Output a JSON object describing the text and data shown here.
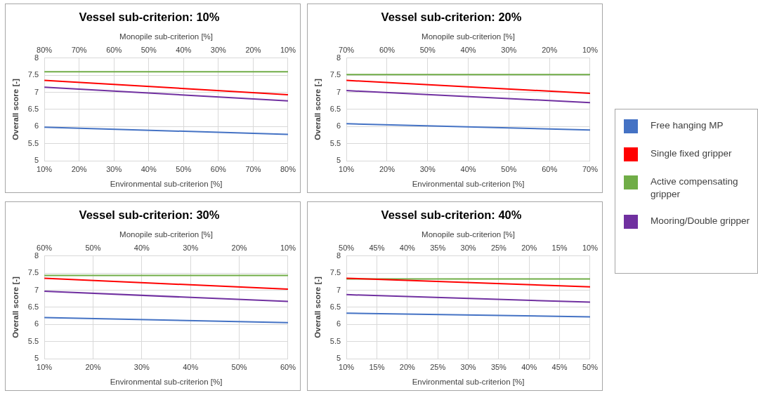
{
  "chart_data": [
    {
      "type": "line",
      "title": "Vessel sub-criterion: 10%",
      "xlabel": "Environmental sub-criterion [%]",
      "x2label": "Monopile sub-criterion [%]",
      "ylabel": "Overall score [-]",
      "x": [
        10,
        80
      ],
      "xlim": [
        10,
        80
      ],
      "xticks": [
        {
          "value": 10,
          "label": "10%"
        },
        {
          "value": 20,
          "label": "20%"
        },
        {
          "value": 30,
          "label": "30%"
        },
        {
          "value": 40,
          "label": "40%"
        },
        {
          "value": 50,
          "label": "50%"
        },
        {
          "value": 60,
          "label": "60%"
        },
        {
          "value": 70,
          "label": "70%"
        },
        {
          "value": 80,
          "label": "80%"
        }
      ],
      "x2lim": [
        80,
        10
      ],
      "x2ticks": [
        {
          "value": 80,
          "label": "80%"
        },
        {
          "value": 70,
          "label": "70%"
        },
        {
          "value": 60,
          "label": "60%"
        },
        {
          "value": 50,
          "label": "50%"
        },
        {
          "value": 40,
          "label": "40%"
        },
        {
          "value": 30,
          "label": "30%"
        },
        {
          "value": 20,
          "label": "20%"
        },
        {
          "value": 10,
          "label": "10%"
        }
      ],
      "ylim": [
        5,
        8
      ],
      "yticks": [
        5,
        5.5,
        6,
        6.5,
        7,
        7.5,
        8
      ],
      "grid": true,
      "marker": "none",
      "series": [
        {
          "color": "#4472c4",
          "values": [
            5.98,
            5.77
          ]
        },
        {
          "color": "#ff0000",
          "values": [
            7.35,
            6.93
          ]
        },
        {
          "color": "#70ad47",
          "values": [
            7.6,
            7.6
          ]
        },
        {
          "color": "#7030a0",
          "values": [
            7.15,
            6.75
          ]
        }
      ]
    },
    {
      "type": "line",
      "title": "Vessel sub-criterion: 20%",
      "xlabel": "Environmental sub-criterion [%]",
      "x2label": "Monopile sub-criterion [%]",
      "ylabel": "Overall score [-]",
      "x": [
        10,
        70
      ],
      "xlim": [
        10,
        70
      ],
      "xticks": [
        {
          "value": 10,
          "label": "10%"
        },
        {
          "value": 20,
          "label": "20%"
        },
        {
          "value": 30,
          "label": "30%"
        },
        {
          "value": 40,
          "label": "40%"
        },
        {
          "value": 50,
          "label": "50%"
        },
        {
          "value": 60,
          "label": "60%"
        },
        {
          "value": 70,
          "label": "70%"
        }
      ],
      "x2lim": [
        70,
        10
      ],
      "x2ticks": [
        {
          "value": 70,
          "label": "70%"
        },
        {
          "value": 60,
          "label": "60%"
        },
        {
          "value": 50,
          "label": "50%"
        },
        {
          "value": 40,
          "label": "40%"
        },
        {
          "value": 30,
          "label": "30%"
        },
        {
          "value": 20,
          "label": "20%"
        },
        {
          "value": 10,
          "label": "10%"
        }
      ],
      "ylim": [
        5,
        8
      ],
      "yticks": [
        5,
        5.5,
        6,
        6.5,
        7,
        7.5,
        8
      ],
      "grid": true,
      "marker": "none",
      "legend": "right",
      "series": [
        {
          "name": "Free hanging MP",
          "color": "#4472c4",
          "values": [
            6.08,
            5.9
          ]
        },
        {
          "name": "Single fixed gripper",
          "color": "#ff0000",
          "values": [
            7.35,
            6.97
          ]
        },
        {
          "name": "Active compensating gripper",
          "color": "#70ad47",
          "values": [
            7.52,
            7.52
          ]
        },
        {
          "name": "Mooring/Double gripper",
          "color": "#7030a0",
          "values": [
            7.05,
            6.7
          ]
        }
      ]
    },
    {
      "type": "line",
      "title": "Vessel sub-criterion: 30%",
      "xlabel": "Environmental sub-criterion [%]",
      "x2label": "Monopile sub-criterion [%]",
      "ylabel": "Overall score [-]",
      "x": [
        10,
        60
      ],
      "xlim": [
        10,
        60
      ],
      "xticks": [
        {
          "value": 10,
          "label": "10%"
        },
        {
          "value": 20,
          "label": "20%"
        },
        {
          "value": 30,
          "label": "30%"
        },
        {
          "value": 40,
          "label": "40%"
        },
        {
          "value": 50,
          "label": "50%"
        },
        {
          "value": 60,
          "label": "60%"
        }
      ],
      "x2lim": [
        60,
        10
      ],
      "x2ticks": [
        {
          "value": 60,
          "label": "60%"
        },
        {
          "value": 50,
          "label": "50%"
        },
        {
          "value": 40,
          "label": "40%"
        },
        {
          "value": 30,
          "label": "30%"
        },
        {
          "value": 20,
          "label": "20%"
        },
        {
          "value": 10,
          "label": "10%"
        }
      ],
      "ylim": [
        5,
        8
      ],
      "yticks": [
        5,
        5.5,
        6,
        6.5,
        7,
        7.5,
        8
      ],
      "grid": true,
      "marker": "none",
      "series": [
        {
          "color": "#4472c4",
          "values": [
            6.2,
            6.05
          ]
        },
        {
          "color": "#ff0000",
          "values": [
            7.35,
            7.03
          ]
        },
        {
          "color": "#70ad47",
          "values": [
            7.43,
            7.43
          ]
        },
        {
          "color": "#7030a0",
          "values": [
            6.97,
            6.67
          ]
        }
      ]
    },
    {
      "type": "line",
      "title": "Vessel sub-criterion: 40%",
      "xlabel": "Environmental sub-criterion [%]",
      "x2label": "Monopile sub-criterion [%]",
      "ylabel": "Overall score [-]",
      "x": [
        10,
        50
      ],
      "xlim": [
        10,
        50
      ],
      "xticks": [
        {
          "value": 10,
          "label": "10%"
        },
        {
          "value": 15,
          "label": "15%"
        },
        {
          "value": 20,
          "label": "20%"
        },
        {
          "value": 25,
          "label": "25%"
        },
        {
          "value": 30,
          "label": "30%"
        },
        {
          "value": 35,
          "label": "35%"
        },
        {
          "value": 40,
          "label": "40%"
        },
        {
          "value": 45,
          "label": "45%"
        },
        {
          "value": 50,
          "label": "50%"
        }
      ],
      "x2lim": [
        50,
        10
      ],
      "x2ticks": [
        {
          "value": 50,
          "label": "50%"
        },
        {
          "value": 45,
          "label": "45%"
        },
        {
          "value": 40,
          "label": "40%"
        },
        {
          "value": 35,
          "label": "35%"
        },
        {
          "value": 30,
          "label": "30%"
        },
        {
          "value": 25,
          "label": "25%"
        },
        {
          "value": 20,
          "label": "20%"
        },
        {
          "value": 15,
          "label": "15%"
        },
        {
          "value": 10,
          "label": "10%"
        }
      ],
      "ylim": [
        5,
        8
      ],
      "yticks": [
        5,
        5.5,
        6,
        6.5,
        7,
        7.5,
        8
      ],
      "grid": true,
      "marker": "none",
      "series": [
        {
          "color": "#4472c4",
          "values": [
            6.33,
            6.22
          ]
        },
        {
          "color": "#ff0000",
          "values": [
            7.35,
            7.1
          ]
        },
        {
          "color": "#70ad47",
          "values": [
            7.33,
            7.33
          ]
        },
        {
          "color": "#7030a0",
          "values": [
            6.87,
            6.65
          ]
        }
      ]
    }
  ]
}
